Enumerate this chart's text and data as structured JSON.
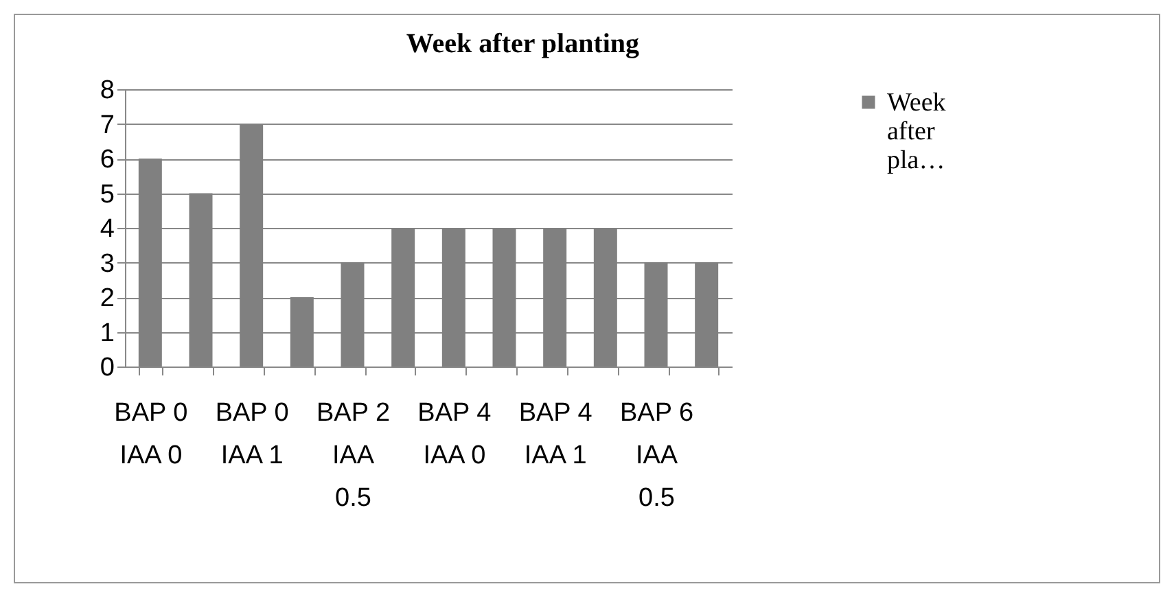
{
  "chart_data": {
    "type": "bar",
    "title": "Week after planting",
    "categories": [
      "BAP 0 IAA 0",
      null,
      "BAP 0 IAA 1",
      null,
      "BAP 2 IAA 0.5",
      null,
      "BAP 4 IAA 0",
      null,
      "BAP 4 IAA 1",
      null,
      "BAP 6 IAA 0.5",
      null
    ],
    "series": [
      {
        "name": "Week after pla…",
        "color": "#808080",
        "values": [
          6,
          5,
          7,
          2,
          3,
          4,
          4,
          4,
          4,
          4,
          3,
          3
        ]
      }
    ],
    "ylim": [
      0,
      8
    ],
    "yticks": [
      0,
      1,
      2,
      3,
      4,
      5,
      6,
      7,
      8
    ],
    "grid": "y",
    "legend": "right"
  }
}
